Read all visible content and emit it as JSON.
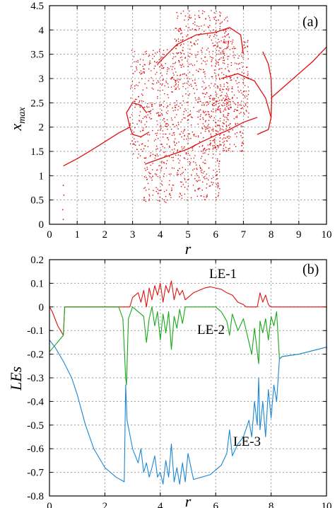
{
  "chart_data": [
    {
      "type": "scatter",
      "panel_label": "(a)",
      "xlabel": "r",
      "ylabel": "x",
      "ylabel_sub": "max",
      "xlim": [
        0,
        10
      ],
      "ylim": [
        0,
        4.5
      ],
      "xticks": [
        "0",
        "1",
        "2",
        "3",
        "4",
        "5",
        "6",
        "7",
        "8",
        "9",
        "10"
      ],
      "yticks": [
        "0",
        "0.5",
        "1",
        "1.5",
        "2",
        "2.5",
        "3",
        "3.5",
        "4",
        "4.5"
      ],
      "grid": true,
      "color": "#e01010",
      "series": [
        {
          "branches": [
            {
              "kind": "line",
              "points": [
                [
                  0.5,
                  1.2
                ],
                [
                  1,
                  1.35
                ],
                [
                  1.5,
                  1.52
                ],
                [
                  2,
                  1.7
                ],
                [
                  2.5,
                  1.88
                ],
                [
                  2.9,
                  2.0
                ]
              ]
            },
            {
              "kind": "line",
              "points": [
                [
                  2.9,
                  2.0
                ],
                [
                  2.78,
                  2.3
                ],
                [
                  3.0,
                  2.5
                ],
                [
                  3.3,
                  2.45
                ],
                [
                  3.5,
                  2.3
                ]
              ]
            },
            {
              "kind": "line",
              "points": [
                [
                  2.9,
                  2.0
                ],
                [
                  3.0,
                  1.85
                ],
                [
                  3.3,
                  1.8
                ],
                [
                  3.6,
                  1.9
                ]
              ]
            },
            {
              "kind": "line",
              "points": [
                [
                  3.9,
                  3.3
                ],
                [
                  4.6,
                  3.7
                ],
                [
                  5.3,
                  3.9
                ],
                [
                  6.0,
                  3.95
                ],
                [
                  6.5,
                  4.05
                ],
                [
                  6.9,
                  3.9
                ],
                [
                  7.0,
                  3.5
                ]
              ]
            },
            {
              "kind": "line",
              "points": [
                [
                  6.2,
                  3.0
                ],
                [
                  6.8,
                  3.1
                ],
                [
                  7.4,
                  2.95
                ],
                [
                  7.8,
                  2.6
                ],
                [
                  8.0,
                  2.2
                ],
                [
                  7.9,
                  1.95
                ],
                [
                  7.5,
                  1.85
                ]
              ]
            },
            {
              "kind": "line",
              "points": [
                [
                  7.7,
                  3.55
                ],
                [
                  7.9,
                  3.3
                ],
                [
                  8.0,
                  3.0
                ],
                [
                  8.02,
                  2.6
                ],
                [
                  8.0,
                  2.2
                ]
              ]
            },
            {
              "kind": "line",
              "points": [
                [
                  8.0,
                  2.6
                ],
                [
                  8.5,
                  2.85
                ],
                [
                  9.0,
                  3.1
                ],
                [
                  9.5,
                  3.35
                ],
                [
                  10,
                  3.65
                ]
              ]
            },
            {
              "kind": "line",
              "points": [
                [
                  3.5,
                  1.25
                ],
                [
                  4.0,
                  1.35
                ],
                [
                  4.5,
                  1.45
                ],
                [
                  5.0,
                  1.55
                ],
                [
                  5.5,
                  1.7
                ],
                [
                  6.0,
                  1.83
                ],
                [
                  6.5,
                  1.95
                ],
                [
                  7.0,
                  2.1
                ],
                [
                  7.5,
                  2.2
                ]
              ]
            }
          ],
          "chaotic_regions": [
            {
              "r": [
                2.9,
                4.6
              ],
              "x": [
                1.35,
                3.6
              ]
            },
            {
              "r": [
                3.4,
                4.5
              ],
              "x": [
                0.45,
                1.35
              ]
            },
            {
              "r": [
                4.6,
                6.2
              ],
              "x": [
                0.5,
                1.5
              ]
            },
            {
              "r": [
                4.5,
                6.5
              ],
              "x": [
                1.5,
                4.4
              ]
            },
            {
              "r": [
                6.0,
                7.2
              ],
              "x": [
                2.2,
                3.8
              ]
            },
            {
              "r": [
                5.5,
                7.0
              ],
              "x": [
                1.5,
                2.6
              ]
            }
          ],
          "sparse_points": [
            [
              0.5,
              0.8
            ],
            [
              0.52,
              0.6
            ],
            [
              0.48,
              0.3
            ],
            [
              0.5,
              0.1
            ]
          ]
        }
      ]
    },
    {
      "type": "line",
      "panel_label": "(b)",
      "xlabel": "r",
      "ylabel": "LEs",
      "xlim": [
        0,
        10
      ],
      "ylim": [
        -0.8,
        0.2
      ],
      "xticks": [
        "0",
        "2",
        "4",
        "6",
        "8",
        "10"
      ],
      "yticks": [
        "-0.8",
        "-0.7",
        "-0.6",
        "-0.5",
        "-0.4",
        "-0.3",
        "-0.2",
        "-0.1",
        "0",
        "0.1",
        "0.2"
      ],
      "grid": true,
      "annotations": [
        "LE-1",
        "LE-2",
        "LE-3"
      ],
      "series": [
        {
          "name": "LE-1",
          "color": "#e01010",
          "points": [
            [
              0,
              0
            ],
            [
              0.05,
              -0.01
            ],
            [
              0.1,
              -0.02
            ],
            [
              0.15,
              -0.035
            ],
            [
              0.2,
              -0.05
            ],
            [
              0.25,
              -0.065
            ],
            [
              0.3,
              -0.08
            ],
            [
              0.35,
              -0.09
            ],
            [
              0.4,
              -0.1
            ],
            [
              0.45,
              -0.11
            ],
            [
              0.5,
              -0.12
            ],
            [
              0.55,
              0
            ],
            [
              1,
              0
            ],
            [
              2,
              0
            ],
            [
              2.9,
              0
            ],
            [
              3.0,
              0.04
            ],
            [
              3.2,
              0.06
            ],
            [
              3.3,
              0.02
            ],
            [
              3.4,
              0.07
            ],
            [
              3.5,
              0
            ],
            [
              3.6,
              0.08
            ],
            [
              3.7,
              0.03
            ],
            [
              3.8,
              0.09
            ],
            [
              3.9,
              0.05
            ],
            [
              4.0,
              0.1
            ],
            [
              4.1,
              0.02
            ],
            [
              4.2,
              0.09
            ],
            [
              4.3,
              0.06
            ],
            [
              4.4,
              0.11
            ],
            [
              4.5,
              0.03
            ],
            [
              4.6,
              0.08
            ],
            [
              4.7,
              0.05
            ],
            [
              4.8,
              0.07
            ],
            [
              4.9,
              0.03
            ],
            [
              5.0,
              0.04
            ],
            [
              5.2,
              0.06
            ],
            [
              5.4,
              0.07
            ],
            [
              5.6,
              0.08
            ],
            [
              5.8,
              0.085
            ],
            [
              6.0,
              0.08
            ],
            [
              6.2,
              0.075
            ],
            [
              6.4,
              0.06
            ],
            [
              6.6,
              0.05
            ],
            [
              6.8,
              0.02
            ],
            [
              7.0,
              0.01
            ],
            [
              7.1,
              0
            ],
            [
              7.5,
              0
            ],
            [
              7.6,
              0.06
            ],
            [
              7.7,
              0.02
            ],
            [
              7.8,
              0.05
            ],
            [
              7.9,
              0.01
            ],
            [
              8.0,
              0
            ],
            [
              10,
              0
            ]
          ]
        },
        {
          "name": "LE-2",
          "color": "#18a818",
          "points": [
            [
              0,
              -0.19
            ],
            [
              0.5,
              -0.12
            ],
            [
              0.55,
              0
            ],
            [
              2.2,
              0
            ],
            [
              2.5,
              0
            ],
            [
              2.65,
              -0.05
            ],
            [
              2.75,
              -0.3
            ],
            [
              2.78,
              -0.33
            ],
            [
              2.85,
              -0.05
            ],
            [
              3.0,
              0
            ],
            [
              3.4,
              -0.04
            ],
            [
              3.5,
              -0.15
            ],
            [
              3.6,
              -0.05
            ],
            [
              3.7,
              0
            ],
            [
              3.8,
              -0.08
            ],
            [
              3.9,
              -0.02
            ],
            [
              4.0,
              -0.14
            ],
            [
              4.1,
              -0.03
            ],
            [
              4.2,
              -0.11
            ],
            [
              4.3,
              -0.02
            ],
            [
              4.4,
              -0.18
            ],
            [
              4.5,
              -0.04
            ],
            [
              4.6,
              -0.09
            ],
            [
              4.7,
              -0.01
            ],
            [
              4.8,
              -0.07
            ],
            [
              4.9,
              0
            ],
            [
              5.2,
              0
            ],
            [
              5.5,
              0
            ],
            [
              5.8,
              0
            ],
            [
              6.0,
              0
            ],
            [
              6.2,
              -0.02
            ],
            [
              6.4,
              -0.06
            ],
            [
              6.5,
              -0.12
            ],
            [
              6.6,
              -0.03
            ],
            [
              6.8,
              -0.1
            ],
            [
              7.0,
              -0.05
            ],
            [
              7.3,
              -0.2
            ],
            [
              7.4,
              -0.09
            ],
            [
              7.55,
              -0.24
            ],
            [
              7.6,
              -0.06
            ],
            [
              7.7,
              -0.11
            ],
            [
              7.8,
              -0.05
            ],
            [
              7.9,
              -0.14
            ],
            [
              8.0,
              -0.04
            ],
            [
              8.1,
              -0.08
            ],
            [
              8.2,
              -0.02
            ],
            [
              8.3,
              -0.22
            ],
            [
              8.4,
              -0.21
            ],
            [
              9.0,
              -0.2
            ],
            [
              10,
              -0.17
            ]
          ]
        },
        {
          "name": "LE-3",
          "color": "#1b87d6",
          "points": [
            [
              0,
              -0.14
            ],
            [
              0.2,
              -0.17
            ],
            [
              0.5,
              -0.23
            ],
            [
              0.8,
              -0.3
            ],
            [
              1.0,
              -0.37
            ],
            [
              1.3,
              -0.5
            ],
            [
              1.6,
              -0.6
            ],
            [
              2.0,
              -0.68
            ],
            [
              2.4,
              -0.72
            ],
            [
              2.7,
              -0.74
            ],
            [
              2.75,
              -0.33
            ],
            [
              2.8,
              -0.48
            ],
            [
              3.0,
              -0.6
            ],
            [
              3.2,
              -0.66
            ],
            [
              3.3,
              -0.6
            ],
            [
              3.4,
              -0.7
            ],
            [
              3.5,
              -0.66
            ],
            [
              3.6,
              -0.72
            ],
            [
              3.7,
              -0.68
            ],
            [
              3.8,
              -0.63
            ],
            [
              3.9,
              -0.72
            ],
            [
              4.0,
              -0.7
            ],
            [
              4.1,
              -0.75
            ],
            [
              4.2,
              -0.65
            ],
            [
              4.3,
              -0.72
            ],
            [
              4.4,
              -0.58
            ],
            [
              4.5,
              -0.74
            ],
            [
              4.6,
              -0.68
            ],
            [
              4.7,
              -0.75
            ],
            [
              4.8,
              -0.66
            ],
            [
              4.9,
              -0.74
            ],
            [
              5.0,
              -0.62
            ],
            [
              5.2,
              -0.73
            ],
            [
              5.5,
              -0.72
            ],
            [
              5.8,
              -0.71
            ],
            [
              6.0,
              -0.69
            ],
            [
              6.2,
              -0.67
            ],
            [
              6.4,
              -0.62
            ],
            [
              6.5,
              -0.52
            ],
            [
              6.6,
              -0.63
            ],
            [
              6.8,
              -0.58
            ],
            [
              7.0,
              -0.55
            ],
            [
              7.2,
              -0.48
            ],
            [
              7.3,
              -0.55
            ],
            [
              7.4,
              -0.4
            ],
            [
              7.5,
              -0.5
            ],
            [
              7.55,
              -0.3
            ],
            [
              7.6,
              -0.52
            ],
            [
              7.7,
              -0.4
            ],
            [
              7.8,
              -0.55
            ],
            [
              7.9,
              -0.35
            ],
            [
              8.0,
              -0.47
            ],
            [
              8.1,
              -0.33
            ],
            [
              8.2,
              -0.4
            ],
            [
              8.3,
              -0.22
            ],
            [
              8.4,
              -0.21
            ],
            [
              9.0,
              -0.2
            ],
            [
              10,
              -0.17
            ]
          ]
        }
      ]
    }
  ]
}
